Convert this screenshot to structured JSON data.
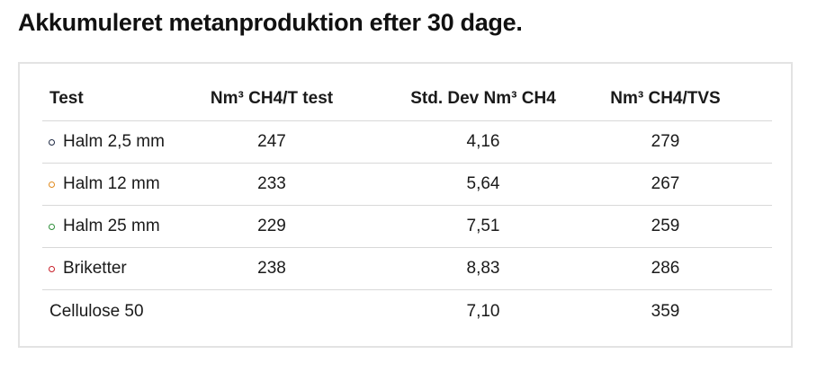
{
  "title": "Akkumuleret metanproduktion efter 30 dage.",
  "table": {
    "headers": [
      "Test",
      "Nm³ CH4/T test",
      "Std. Dev Nm³ CH4",
      "Nm³ CH4/TVS"
    ],
    "rows": [
      {
        "label": "Halm 2,5 mm",
        "marker_color": "#1f2a44",
        "t": "247",
        "std": "4,16",
        "tvs": "279"
      },
      {
        "label": "Halm 12 mm",
        "marker_color": "#e08a1e",
        "t": "233",
        "std": "5,64",
        "tvs": "267"
      },
      {
        "label": "Halm 25 mm",
        "marker_color": "#2f8f3a",
        "t": "229",
        "std": "7,51",
        "tvs": "259"
      },
      {
        "label": "Briketter",
        "marker_color": "#c8202a",
        "t": "238",
        "std": "8,83",
        "tvs": "286"
      },
      {
        "label": "Cellulose 50",
        "marker_color": "",
        "t": "",
        "std": "7,10",
        "tvs": "359"
      }
    ]
  }
}
